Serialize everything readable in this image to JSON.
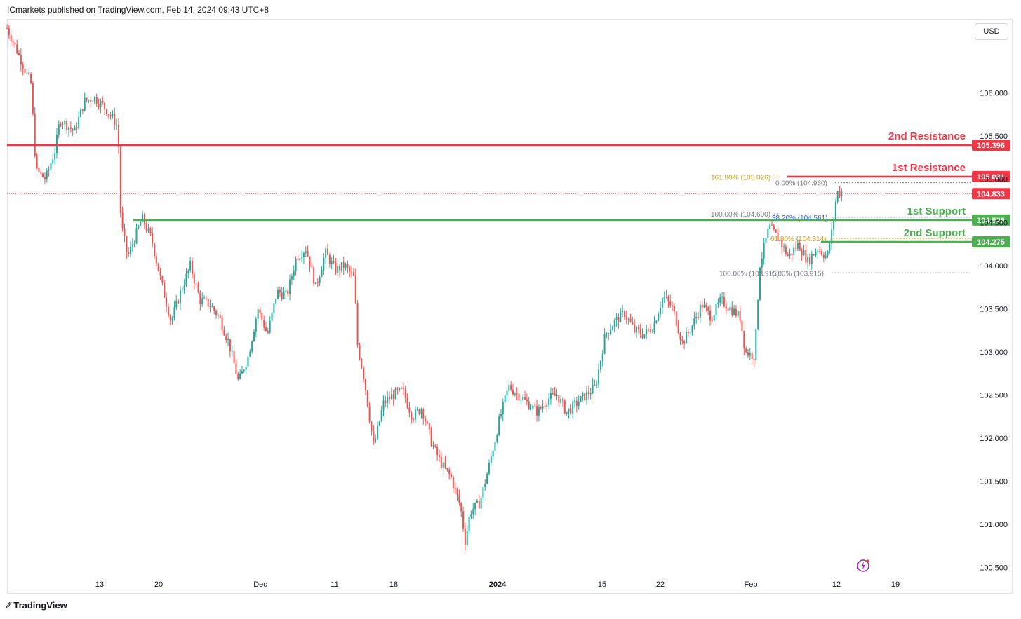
{
  "header": {
    "publisher_line": "ICmarkets published on TradingView.com, Feb 14, 2024 09:43 UTC+8"
  },
  "toolbar": {
    "currency": "USD"
  },
  "footer": {
    "brand": "TradingView"
  },
  "colors": {
    "up": "#26a69a",
    "down": "#ef5350",
    "resistance": "#f23645",
    "support": "#4caf50",
    "fib_gold": "#c9a227",
    "fib_blue": "#2962ff",
    "fib_gray": "#787b86"
  },
  "chart_data": {
    "type": "candlestick",
    "y_axis_ticks": [
      "106.000",
      "105.500",
      "105.000",
      "104.500",
      "104.000",
      "103.500",
      "103.000",
      "102.500",
      "102.000",
      "101.500",
      "101.000",
      "100.500"
    ],
    "x_axis_ticks": [
      "13",
      "20",
      "Dec",
      "11",
      "18",
      "2024",
      "15",
      "22",
      "Feb",
      "12",
      "19"
    ],
    "ylim": [
      100.4,
      106.85
    ],
    "horizontal_levels": [
      {
        "label": "2nd Resistance",
        "price": 105.396,
        "price_label": "105.396",
        "color": "#f23645"
      },
      {
        "label": "1st Resistance",
        "price": 105.031,
        "price_label": "105.031",
        "color": "#f23645"
      },
      {
        "label": "1st Support",
        "price": 104.528,
        "price_label": "104.528",
        "color": "#4caf50"
      },
      {
        "label": "2nd Support",
        "price": 104.275,
        "price_label": "104.275",
        "color": "#4caf50"
      }
    ],
    "current_price": {
      "price": 104.833,
      "price_label": "104.833"
    },
    "fib_labels": [
      {
        "text": "161.80% (105.026)",
        "price": 105.026,
        "color": "#c9a227"
      },
      {
        "text": "0.00% (104.960)",
        "price": 104.96,
        "color": "#787b86"
      },
      {
        "text": "100.00% (104.600)",
        "price": 104.6,
        "color": "#787b86"
      },
      {
        "text": "38.20% (104.561)",
        "price": 104.561,
        "color": "#2962ff"
      },
      {
        "text": "61.80% (104.314)",
        "price": 104.314,
        "color": "#c9a227"
      },
      {
        "text": "0.00% (103.915)",
        "price": 103.915,
        "color": "#787b86"
      },
      {
        "text": "100.00% (103.915)",
        "price": 103.915,
        "color": "#787b86"
      }
    ],
    "path_points": [
      [
        0,
        106.75
      ],
      [
        0.01,
        106.5
      ],
      [
        0.025,
        106.1
      ],
      [
        0.03,
        105.1
      ],
      [
        0.04,
        105.0
      ],
      [
        0.05,
        105.35
      ],
      [
        0.055,
        105.7
      ],
      [
        0.07,
        105.55
      ],
      [
        0.08,
        105.9
      ],
      [
        0.09,
        105.95
      ],
      [
        0.1,
        105.85
      ],
      [
        0.11,
        105.7
      ],
      [
        0.115,
        105.6
      ],
      [
        0.118,
        104.5
      ],
      [
        0.125,
        104.1
      ],
      [
        0.14,
        104.55
      ],
      [
        0.15,
        104.3
      ],
      [
        0.16,
        103.8
      ],
      [
        0.17,
        103.35
      ],
      [
        0.18,
        103.7
      ],
      [
        0.19,
        104.0
      ],
      [
        0.2,
        103.6
      ],
      [
        0.21,
        103.55
      ],
      [
        0.22,
        103.4
      ],
      [
        0.23,
        103.1
      ],
      [
        0.24,
        102.65
      ],
      [
        0.25,
        102.95
      ],
      [
        0.26,
        103.5
      ],
      [
        0.27,
        103.2
      ],
      [
        0.28,
        103.7
      ],
      [
        0.29,
        103.65
      ],
      [
        0.3,
        104.1
      ],
      [
        0.31,
        104.2
      ],
      [
        0.32,
        103.75
      ],
      [
        0.33,
        104.15
      ],
      [
        0.34,
        103.95
      ],
      [
        0.35,
        104.0
      ],
      [
        0.36,
        103.85
      ],
      [
        0.363,
        103.1
      ],
      [
        0.37,
        102.7
      ],
      [
        0.38,
        101.9
      ],
      [
        0.39,
        102.4
      ],
      [
        0.4,
        102.5
      ],
      [
        0.41,
        102.55
      ],
      [
        0.42,
        102.25
      ],
      [
        0.43,
        102.35
      ],
      [
        0.44,
        101.95
      ],
      [
        0.45,
        101.7
      ],
      [
        0.46,
        101.55
      ],
      [
        0.47,
        101.2
      ],
      [
        0.475,
        100.8
      ],
      [
        0.48,
        101.15
      ],
      [
        0.49,
        101.25
      ],
      [
        0.5,
        101.7
      ],
      [
        0.51,
        102.2
      ],
      [
        0.52,
        102.6
      ],
      [
        0.53,
        102.5
      ],
      [
        0.54,
        102.4
      ],
      [
        0.55,
        102.3
      ],
      [
        0.56,
        102.45
      ],
      [
        0.57,
        102.5
      ],
      [
        0.58,
        102.3
      ],
      [
        0.59,
        102.4
      ],
      [
        0.6,
        102.5
      ],
      [
        0.61,
        102.6
      ],
      [
        0.62,
        103.2
      ],
      [
        0.63,
        103.35
      ],
      [
        0.64,
        103.45
      ],
      [
        0.65,
        103.25
      ],
      [
        0.66,
        103.2
      ],
      [
        0.67,
        103.3
      ],
      [
        0.68,
        103.65
      ],
      [
        0.69,
        103.5
      ],
      [
        0.7,
        103.1
      ],
      [
        0.71,
        103.3
      ],
      [
        0.72,
        103.55
      ],
      [
        0.73,
        103.4
      ],
      [
        0.74,
        103.6
      ],
      [
        0.75,
        103.5
      ],
      [
        0.76,
        103.4
      ],
      [
        0.765,
        103.0
      ],
      [
        0.775,
        102.95
      ],
      [
        0.78,
        104.0
      ],
      [
        0.79,
        104.45
      ],
      [
        0.8,
        104.3
      ],
      [
        0.81,
        104.1
      ],
      [
        0.82,
        104.25
      ],
      [
        0.83,
        104.05
      ],
      [
        0.84,
        104.2
      ],
      [
        0.85,
        104.1
      ],
      [
        0.855,
        104.4
      ],
      [
        0.86,
        104.85
      ],
      [
        0.865,
        104.85
      ]
    ],
    "grid": false
  }
}
